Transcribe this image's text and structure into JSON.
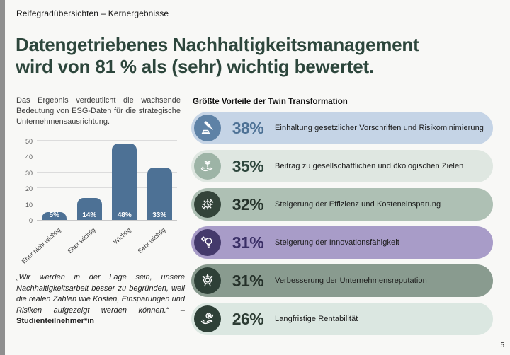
{
  "page": {
    "eyebrow": "Reifegradübersichten – Kernergebnisse",
    "title_line1": "Datengetriebenes Nachhaltigkeitsmanagement",
    "title_line2": "wird von 81 % als (sehr) wichtig bewertet.",
    "page_number": "5",
    "title_color": "#2d463c",
    "background_color": "#f8f8f6"
  },
  "left_column": {
    "intro": "Das Ergebnis verdeutlicht die wachsende Bedeutung von ESG-Daten für die strategische Unternehmensausrichtung.",
    "quote": "„Wir werden in der Lage sein, unsere Nachhaltigkeitsarbeit besser zu begründen, weil die realen Zahlen wie Kosten, Einsparungen und Risiken aufgezeigt werden können.“ – ",
    "quote_attribution": "Studienteilnehmer*in"
  },
  "chart_data": {
    "type": "bar",
    "categories": [
      "Eher nicht wichtig",
      "Eher wichtig",
      "Wichtig",
      "Sehr wichtig"
    ],
    "values": [
      5,
      14,
      48,
      33
    ],
    "value_labels": [
      "5%",
      "14%",
      "48%",
      "33%"
    ],
    "title": "",
    "xlabel": "",
    "ylabel": "",
    "ylim": [
      0,
      50
    ],
    "yticks": [
      0,
      10,
      20,
      30,
      40,
      50
    ],
    "grid": true,
    "bar_color": "#4d7195",
    "value_label_color": "#ffffff"
  },
  "benefits": {
    "heading": "Größte Vorteile der Twin Transformation",
    "items": [
      {
        "pct": "38%",
        "label": "Einhaltung gesetzlicher Vorschriften und Risikominimierung",
        "icon": "gavel-icon",
        "bg": "#c5d4e6",
        "circle": "#5e82a6",
        "pct_color": "#4d7195"
      },
      {
        "pct": "35%",
        "label": "Beitrag zu gesellschaftlichen und ökologischen Zielen",
        "icon": "hand-plant-icon",
        "bg": "#dfe7e1",
        "circle": "#9db4a6",
        "pct_color": "#2d463c"
      },
      {
        "pct": "32%",
        "label": "Steigerung der Effizienz und Kosteneinsparung",
        "icon": "gear-clock-icon",
        "bg": "#aec0b4",
        "circle": "#34443a",
        "pct_color": "#25332b"
      },
      {
        "pct": "31%",
        "label": "Steigerung der Innovationsfähigkeit",
        "icon": "bulb-gear-icon",
        "bg": "#a89cc8",
        "circle": "#443a6b",
        "pct_color": "#3a2f66"
      },
      {
        "pct": "31%",
        "label": "Verbesserung der Unternehmensreputation",
        "icon": "award-badge-icon",
        "bg": "#899b8f",
        "circle": "#2e4037",
        "pct_color": "#243029"
      },
      {
        "pct": "26%",
        "label": "Langfristige Rentabilität",
        "icon": "hand-coins-icon",
        "bg": "#dbe7e1",
        "circle": "#2e4037",
        "pct_color": "#2d3c34"
      }
    ]
  }
}
